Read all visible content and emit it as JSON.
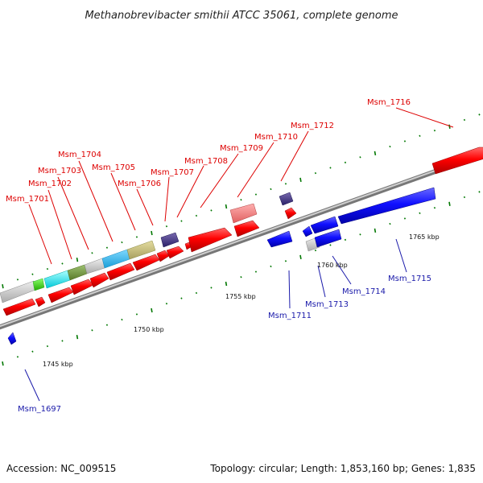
{
  "title": "Methanobrevibacter smithii ATCC 35061, complete genome",
  "accession": "Accession: NC_009515",
  "summary": "Topology: circular; Length: 1,853,160 bp; Genes: 1,835",
  "colors": {
    "forward_gene": "#ff0000",
    "reverse_gene": "#0000ff",
    "label_forward": "#dd0000",
    "label_reverse": "#1a1aaa",
    "backbone": "#999999",
    "tick": "#007700"
  },
  "scale_labels": [
    "1745 kbp",
    "1750 kbp",
    "1755 kbp",
    "1760 kbp",
    "1765 kbp"
  ],
  "gene_labels": [
    {
      "text": "Msm_1697",
      "strand": "reverse"
    },
    {
      "text": "Msm_1701",
      "strand": "forward"
    },
    {
      "text": "Msm_1702",
      "strand": "forward"
    },
    {
      "text": "Msm_1703",
      "strand": "forward"
    },
    {
      "text": "Msm_1704",
      "strand": "forward"
    },
    {
      "text": "Msm_1705",
      "strand": "forward"
    },
    {
      "text": "Msm_1706",
      "strand": "forward"
    },
    {
      "text": "Msm_1707",
      "strand": "forward"
    },
    {
      "text": "Msm_1708",
      "strand": "forward"
    },
    {
      "text": "Msm_1709",
      "strand": "forward"
    },
    {
      "text": "Msm_1710",
      "strand": "forward"
    },
    {
      "text": "Msm_1711",
      "strand": "reverse"
    },
    {
      "text": "Msm_1712",
      "strand": "forward"
    },
    {
      "text": "Msm_1713",
      "strand": "reverse"
    },
    {
      "text": "Msm_1714",
      "strand": "reverse"
    },
    {
      "text": "Msm_1715",
      "strand": "reverse"
    },
    {
      "text": "Msm_1716",
      "strand": "forward"
    }
  ]
}
